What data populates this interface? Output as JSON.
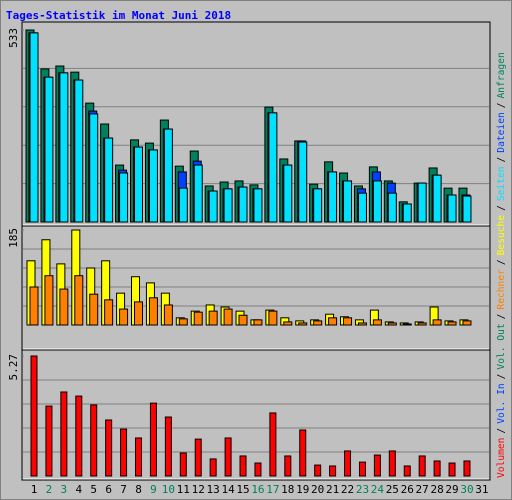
{
  "title": "Tages-Statistik im Monat Juni 2018",
  "legend_separator": "/",
  "chart_data": [
    {
      "type": "bar",
      "ylim": [
        0,
        533
      ],
      "yticks": [
        533
      ],
      "grid_divisions": 5,
      "series": [
        {
          "name": "Seiten",
          "color": "#00e0ff",
          "values": [
            525,
            402,
            414,
            394,
            300,
            233,
            136,
            208,
            200,
            258,
            94,
            158,
            86,
            92,
            97,
            92,
            303,
            158,
            222,
            92,
            139,
            114,
            80,
            114,
            80,
            50,
            108,
            130,
            75,
            72,
            0
          ]
        },
        {
          "name": "Dateien",
          "color": "#0040ff",
          "values": [
            525,
            402,
            414,
            394,
            308,
            233,
            144,
            208,
            200,
            258,
            139,
            169,
            86,
            92,
            97,
            92,
            303,
            158,
            225,
            92,
            139,
            114,
            92,
            139,
            108,
            50,
            108,
            130,
            75,
            75,
            0
          ]
        },
        {
          "name": "Anfragen",
          "color": "#00805c",
          "values": [
            533,
            425,
            433,
            416,
            330,
            272,
            158,
            228,
            219,
            283,
            155,
            197,
            100,
            111,
            114,
            103,
            319,
            175,
            225,
            105,
            167,
            136,
            100,
            153,
            114,
            56,
            108,
            150,
            94,
            94,
            0
          ]
        }
      ]
    },
    {
      "type": "bar",
      "ylim": [
        0,
        185
      ],
      "yticks": [
        185
      ],
      "grid_divisions": 5,
      "series": [
        {
          "name": "Rechner",
          "color": "#ff8000",
          "values": [
            74,
            96,
            70,
            96,
            60,
            49,
            31,
            45,
            53,
            39,
            12,
            25,
            27,
            31,
            19,
            10,
            27,
            6,
            4,
            8,
            14,
            14,
            4,
            10,
            4,
            2,
            4,
            10,
            6,
            8,
            0
          ]
        },
        {
          "name": "Besuche",
          "color": "#ffff00",
          "values": [
            125,
            166,
            119,
            185,
            111,
            125,
            62,
            94,
            82,
            62,
            14,
            27,
            39,
            35,
            27,
            10,
            29,
            14,
            8,
            10,
            21,
            16,
            10,
            29,
            6,
            4,
            6,
            35,
            8,
            10,
            0
          ]
        }
      ]
    },
    {
      "type": "bar",
      "ylim": [
        0,
        5.27
      ],
      "yticks": [
        5.27
      ],
      "grid_divisions": 5,
      "categories": [
        "1",
        "2",
        "3",
        "4",
        "5",
        "6",
        "7",
        "8",
        "9",
        "10",
        "11",
        "12",
        "13",
        "14",
        "15",
        "16",
        "17",
        "18",
        "19",
        "20",
        "21",
        "22",
        "23",
        "24",
        "25",
        "26",
        "27",
        "28",
        "29",
        "30",
        "31"
      ],
      "category_colors": [
        "#000000",
        "#00805c",
        "#00805c",
        "#000000",
        "#000000",
        "#000000",
        "#000000",
        "#000000",
        "#00805c",
        "#00805c",
        "#000000",
        "#000000",
        "#000000",
        "#000000",
        "#000000",
        "#00805c",
        "#00805c",
        "#000000",
        "#000000",
        "#000000",
        "#000000",
        "#000000",
        "#00805c",
        "#00805c",
        "#000000",
        "#000000",
        "#000000",
        "#000000",
        "#000000",
        "#00805c",
        "#000000"
      ],
      "series": [
        {
          "name": "Volumen",
          "color": "#ff0000",
          "values": [
            5.27,
            3.07,
            3.69,
            3.51,
            3.12,
            2.46,
            2.06,
            1.67,
            3.2,
            2.59,
            1.01,
            1.62,
            0.75,
            1.67,
            0.88,
            0.57,
            2.77,
            0.88,
            2.02,
            0.48,
            0.44,
            1.1,
            0.61,
            0.92,
            1.1,
            0.44,
            0.88,
            0.66,
            0.57,
            0.66,
            0
          ]
        },
        {
          "name": "Vol. In",
          "color": "#0040ff",
          "values": [
            0,
            0,
            0,
            0,
            0,
            0,
            0,
            0,
            0,
            0,
            0,
            0,
            0,
            0,
            0,
            0,
            0,
            0,
            0,
            0,
            0,
            0,
            0,
            0,
            0,
            0,
            0,
            0,
            0,
            0,
            0
          ]
        },
        {
          "name": "Vol. Out",
          "color": "#00805c",
          "values": [
            0,
            0,
            0,
            0,
            0,
            0,
            0,
            0,
            0,
            0,
            0,
            0,
            0,
            0,
            0,
            0,
            0,
            0,
            0,
            0,
            0,
            0,
            0,
            0,
            0,
            0,
            0,
            0,
            0,
            0,
            0
          ]
        }
      ]
    }
  ]
}
